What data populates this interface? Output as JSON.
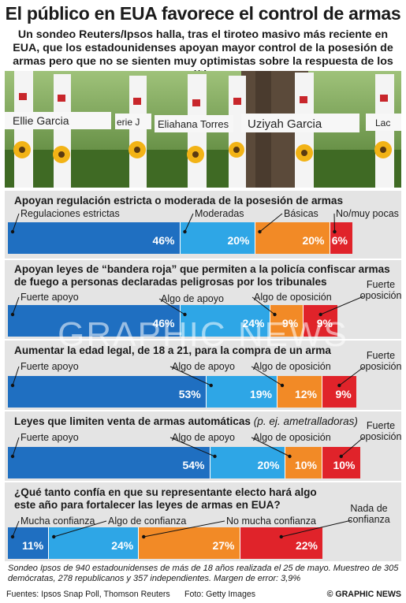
{
  "title": "El público en EUA favorece el control de armas",
  "subtitle": "Un sondeo Reuters/Ipsos halla, tras el tiroteo masivo más reciente en EUA, que los estadounidenses apoyan mayor control de la posesión de armas pero que no se sienten muy optimistas sobre la respuesta de los políticos",
  "photo": {
    "names": [
      "Ellie Garcia",
      "erie J",
      "Eliahana Torres",
      "Uziyah Garcia",
      "Lac"
    ]
  },
  "watermark": "GRAPHIC NEWS",
  "colors": {
    "dark_blue": "#1f6fc1",
    "light_blue": "#2ea6e6",
    "orange": "#f28a26",
    "red": "#e0232a",
    "band": "#e4e4e4"
  },
  "chart_data": [
    {
      "type": "bar",
      "title": "Apoyan regulación estricta o moderada de la posesión de armas",
      "categories": [
        "Regulaciones estrictas",
        "Moderadas",
        "Básicas",
        "No/muy pocas"
      ],
      "values": [
        46,
        20,
        20,
        6
      ],
      "value_labels": [
        "46%",
        "20%",
        "20%",
        "6%"
      ]
    },
    {
      "type": "bar",
      "title": "Apoyan leyes de “bandera roja” que permiten a la policía confiscar armas de fuego a personas declaradas peligrosas por los tribunales",
      "categories": [
        "Fuerte apoyo",
        "Algo de apoyo",
        "Algo de oposición",
        "Fuerte oposición"
      ],
      "values": [
        46,
        24,
        9,
        9
      ],
      "value_labels": [
        "46%",
        "24%",
        "9%",
        "9%"
      ]
    },
    {
      "type": "bar",
      "title": "Aumentar la edad legal, de 18 a 21, para la compra de un arma",
      "categories": [
        "Fuerte apoyo",
        "Algo de apoyo",
        "Algo de oposición",
        "Fuerte oposición"
      ],
      "values": [
        53,
        19,
        12,
        9
      ],
      "value_labels": [
        "53%",
        "19%",
        "12%",
        "9%"
      ]
    },
    {
      "type": "bar",
      "title": "Leyes que limiten venta de armas automáticas",
      "title_note": "(p. ej. ametralladoras)",
      "categories": [
        "Fuerte apoyo",
        "Algo de apoyo",
        "Algo de oposición",
        "Fuerte oposición"
      ],
      "values": [
        54,
        20,
        10,
        10
      ],
      "value_labels": [
        "54%",
        "20%",
        "10%",
        "10%"
      ]
    },
    {
      "type": "bar",
      "title": "¿Qué tanto confía en que su representante electo hará algo este año para fortalecer las leyes de armas en EUA?",
      "categories": [
        "Mucha confianza",
        "Algo de confianza",
        "No mucha confianza",
        "Nada de confianza"
      ],
      "values": [
        11,
        24,
        27,
        22
      ],
      "value_labels": [
        "11%",
        "24%",
        "27%",
        "22%"
      ]
    }
  ],
  "footer": {
    "note": "Sondeo Ipsos de 940 estadounidenses de más de 18 años realizada el 25 de mayo. Muestreo de 305 demócratas, 278 republicanos y 357 independientes. Margen de error: 3,9%",
    "sources": "Fuentes: Ipsos Snap Poll, Thomson Reuters",
    "photo_credit": "Foto: Getty Images",
    "copyright": "© GRAPHIC NEWS"
  }
}
